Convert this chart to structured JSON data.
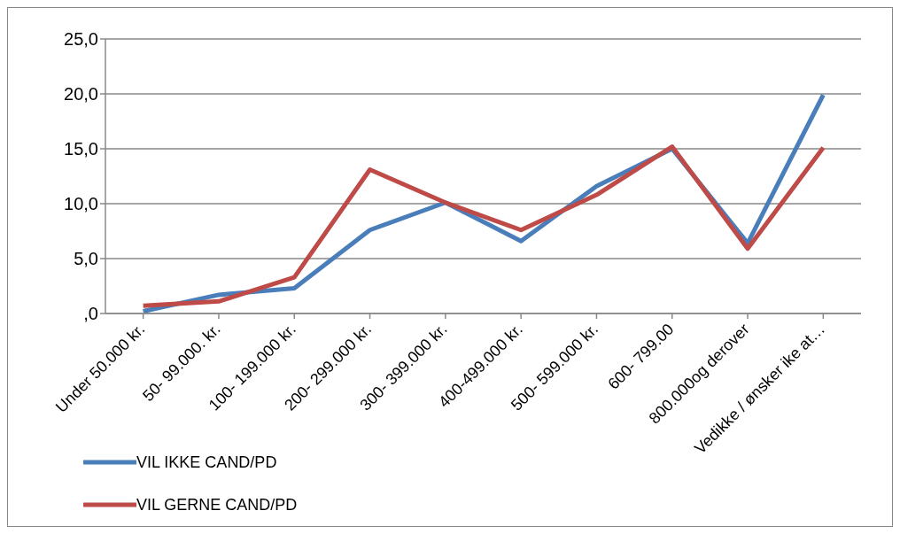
{
  "chart_data": {
    "type": "line",
    "categories": [
      "Under 50.000 kr.",
      "50- 99.000. kr.",
      "100- 199.000 kr.",
      "200- 299.000 kr.",
      "300- 399.000 kr.",
      "400-499.000 kr.",
      "500- 599.000 kr.",
      "600- 799.00",
      "800.000og derover",
      "Vedikke / ønsker ike at…"
    ],
    "series": [
      {
        "name": "VIL IKKE CAND/PD",
        "color": "#4a7ebb",
        "values": [
          0.2,
          1.7,
          2.3,
          7.6,
          10.1,
          6.6,
          11.6,
          15.0,
          6.4,
          19.9
        ]
      },
      {
        "name": "VIL GERNE CAND/PD",
        "color": "#be4b48",
        "values": [
          0.7,
          1.1,
          3.3,
          13.1,
          10.1,
          7.6,
          10.8,
          15.2,
          5.9,
          15.1
        ]
      }
    ],
    "ylim": [
      0,
      25
    ],
    "yticks": [
      {
        "value": 0,
        "label": ",0"
      },
      {
        "value": 5,
        "label": "5,0"
      },
      {
        "value": 10,
        "label": "10,0"
      },
      {
        "value": 15,
        "label": "15,0"
      },
      {
        "value": 20,
        "label": "20,0"
      },
      {
        "value": 25,
        "label": "25,0"
      }
    ],
    "grid": "y",
    "legend": "bottom left",
    "marker": "none",
    "line_style": "solid"
  }
}
